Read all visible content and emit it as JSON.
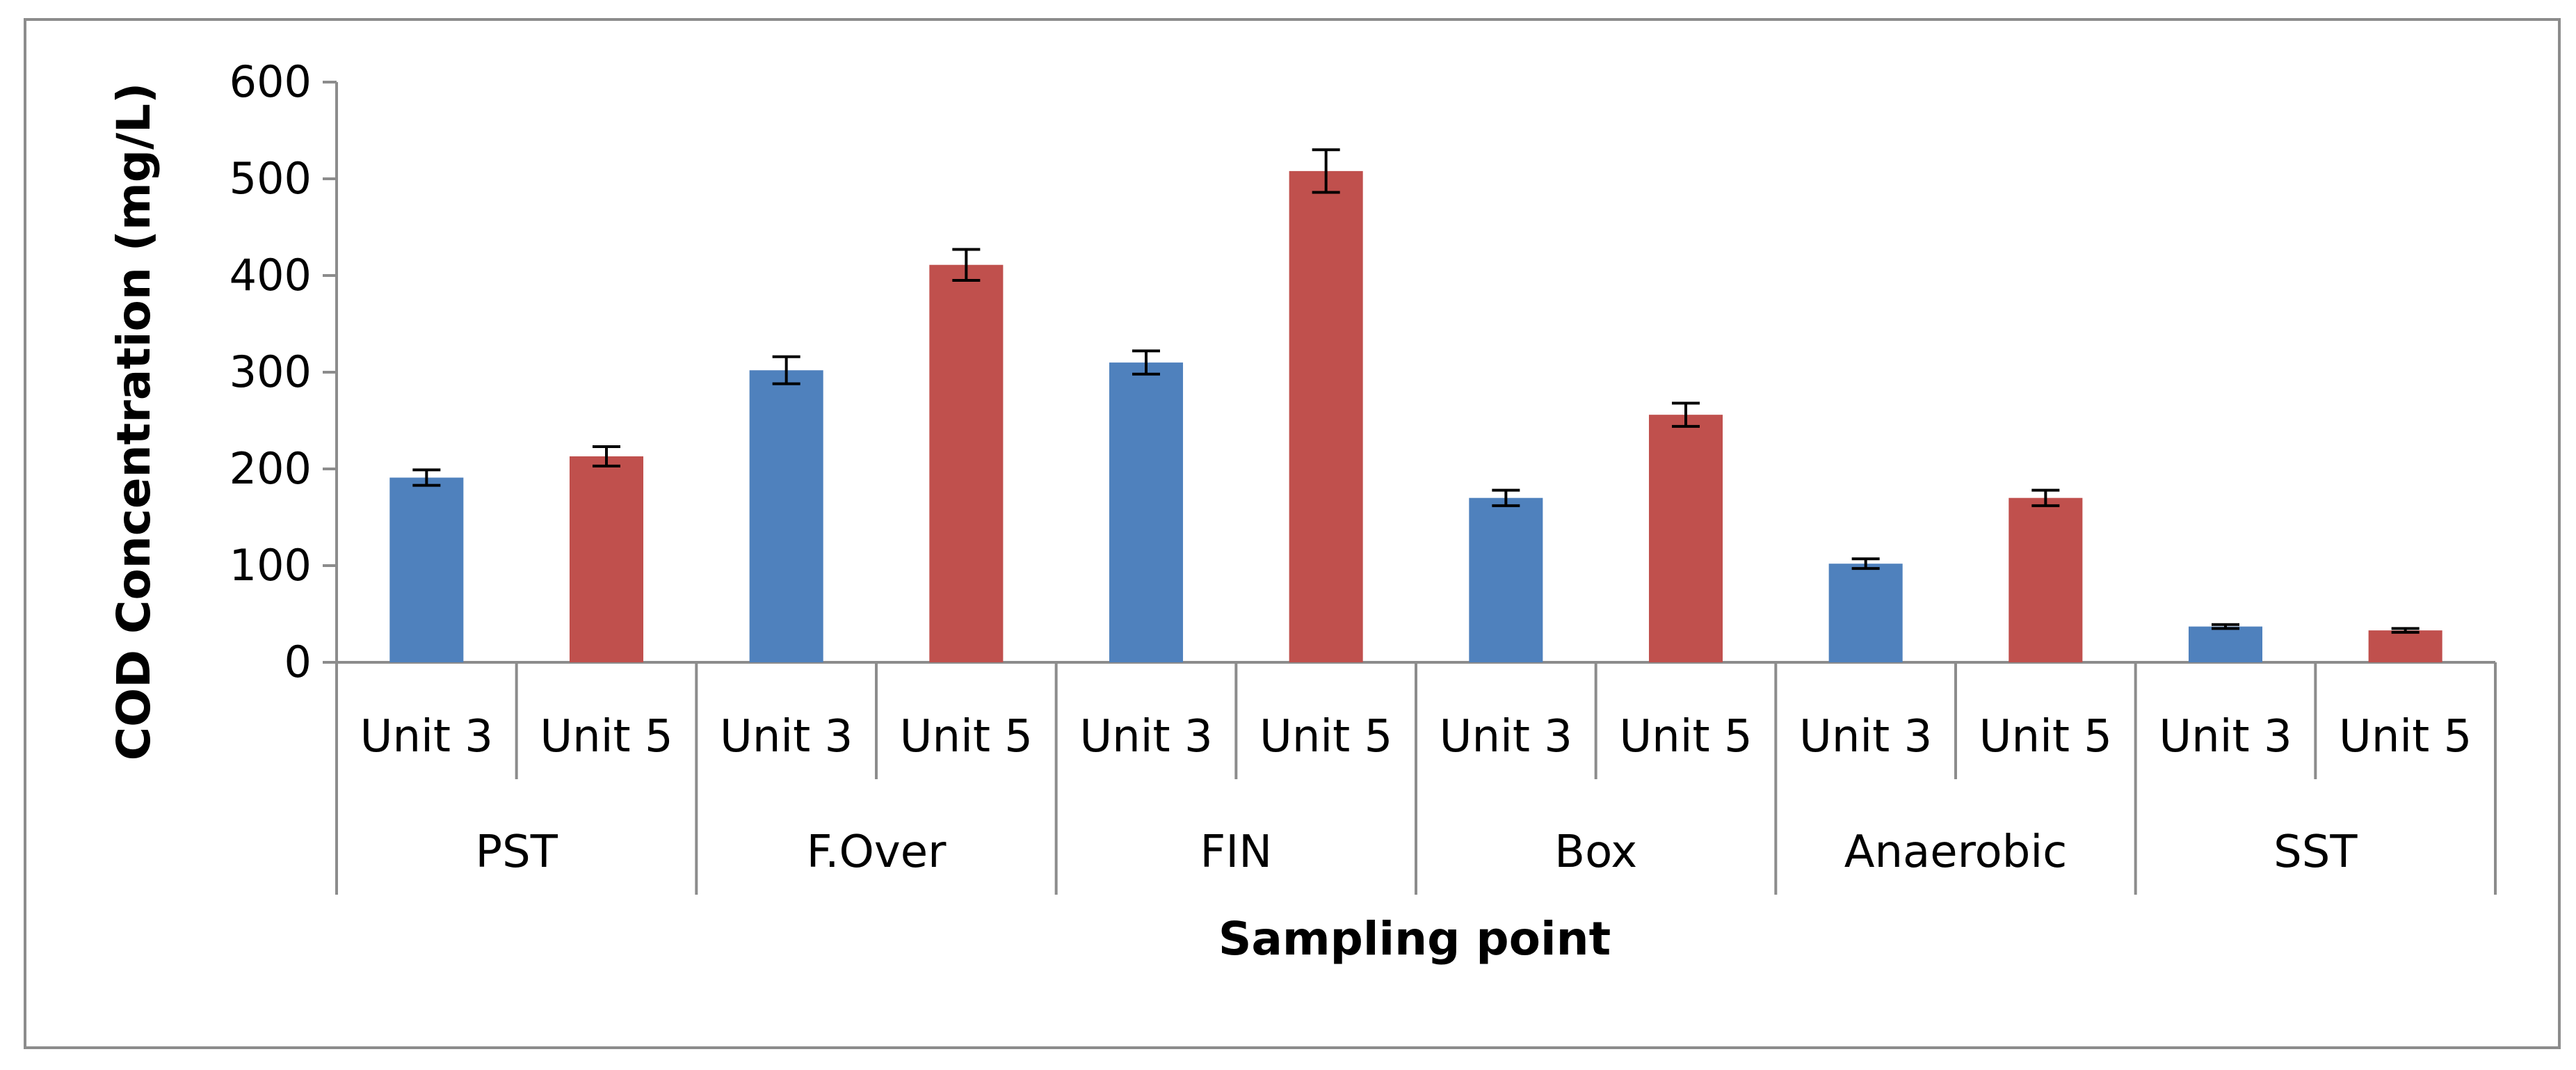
{
  "chart_data": {
    "type": "bar",
    "xlabel": "Sampling point",
    "ylabel": "COD Concentration (mg/L)",
    "ylim": [
      0,
      600
    ],
    "yticks": [
      0,
      100,
      200,
      300,
      400,
      500,
      600
    ],
    "grid": false,
    "legend": "none",
    "groups": [
      {
        "name": "PST",
        "bars": [
          {
            "label": "Unit 3",
            "value": 191,
            "error": 8,
            "color": "#4f81bd"
          },
          {
            "label": "Unit 5",
            "value": 213,
            "error": 10,
            "color": "#c0504d"
          }
        ]
      },
      {
        "name": "F.Over",
        "bars": [
          {
            "label": "Unit 3",
            "value": 302,
            "error": 14,
            "color": "#4f81bd"
          },
          {
            "label": "Unit 5",
            "value": 411,
            "error": 16,
            "color": "#c0504d"
          }
        ]
      },
      {
        "name": "FIN",
        "bars": [
          {
            "label": "Unit 3",
            "value": 310,
            "error": 12,
            "color": "#4f81bd"
          },
          {
            "label": "Unit 5",
            "value": 508,
            "error": 22,
            "color": "#c0504d"
          }
        ]
      },
      {
        "name": "Box",
        "bars": [
          {
            "label": "Unit 3",
            "value": 170,
            "error": 8,
            "color": "#4f81bd"
          },
          {
            "label": "Unit 5",
            "value": 256,
            "error": 12,
            "color": "#c0504d"
          }
        ]
      },
      {
        "name": "Anaerobic",
        "bars": [
          {
            "label": "Unit 3",
            "value": 102,
            "error": 5,
            "color": "#4f81bd"
          },
          {
            "label": "Unit 5",
            "value": 170,
            "error": 8,
            "color": "#c0504d"
          }
        ]
      },
      {
        "name": "SST",
        "bars": [
          {
            "label": "Unit 3",
            "value": 37,
            "error": 2,
            "color": "#4f81bd"
          },
          {
            "label": "Unit 5",
            "value": 33,
            "error": 2,
            "color": "#c0504d"
          }
        ]
      }
    ]
  }
}
